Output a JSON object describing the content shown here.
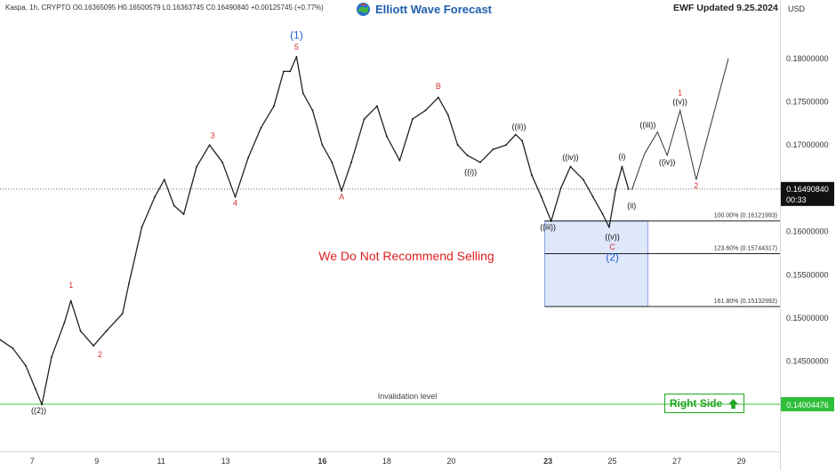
{
  "header": {
    "instrument": "Kaspa, 1h, CRYPTO",
    "ohlc": "O0.16365095 H0.16500579 L0.16363745 C0.16490840 +0.00125745 (+0.77%)",
    "brand": "Elliott Wave Forecast",
    "updated": "EWF Updated 9.25.2024",
    "currency": "USD"
  },
  "colors": {
    "bull_red": "#d32f2f",
    "wave_blue": "#1e5fd6",
    "fib_box": "#dfe7fb",
    "invalidation_green": "#3ec63e",
    "right_side_green": "#22a322"
  },
  "chart_data": {
    "type": "line",
    "subtitle": "We Do Not Recommend Selling",
    "x_axis": {
      "ticks": [
        "7",
        "9",
        "11",
        "13",
        "16",
        "18",
        "20",
        "23",
        "25",
        "27",
        "29"
      ]
    },
    "y_axis": {
      "range": [
        0.1385,
        0.1845
      ],
      "ticks": [
        "0.18000000",
        "0.17500000",
        "0.17000000",
        "0.16000000",
        "0.15500000",
        "0.15000000",
        "0.14500000"
      ],
      "tick_values": [
        0.18,
        0.175,
        0.17,
        0.16,
        0.155,
        0.15,
        0.145
      ]
    },
    "price_series": {
      "name": "Kaspa",
      "points": [
        [
          6.0,
          0.1475
        ],
        [
          6.4,
          0.1465
        ],
        [
          6.8,
          0.1445
        ],
        [
          7.1,
          0.1418
        ],
        [
          7.3,
          0.14
        ],
        [
          7.6,
          0.1455
        ],
        [
          8.0,
          0.1495
        ],
        [
          8.2,
          0.152
        ],
        [
          8.5,
          0.1485
        ],
        [
          8.9,
          0.1468
        ],
        [
          9.3,
          0.1485
        ],
        [
          9.8,
          0.1505
        ],
        [
          10.0,
          0.154
        ],
        [
          10.4,
          0.1605
        ],
        [
          10.8,
          0.164
        ],
        [
          11.1,
          0.166
        ],
        [
          11.4,
          0.163
        ],
        [
          11.7,
          0.162
        ],
        [
          12.1,
          0.1675
        ],
        [
          12.5,
          0.17
        ],
        [
          12.9,
          0.168
        ],
        [
          13.3,
          0.164
        ],
        [
          13.7,
          0.1685
        ],
        [
          14.1,
          0.172
        ],
        [
          14.5,
          0.1745
        ],
        [
          14.8,
          0.1785
        ],
        [
          15.0,
          0.1785
        ],
        [
          15.2,
          0.1802
        ],
        [
          15.4,
          0.176
        ],
        [
          15.7,
          0.174
        ],
        [
          16.0,
          0.17
        ],
        [
          16.3,
          0.168
        ],
        [
          16.6,
          0.1647
        ],
        [
          16.9,
          0.168
        ],
        [
          17.3,
          0.173
        ],
        [
          17.7,
          0.1745
        ],
        [
          18.0,
          0.171
        ],
        [
          18.4,
          0.1682
        ],
        [
          18.8,
          0.173
        ],
        [
          19.2,
          0.174
        ],
        [
          19.6,
          0.1755
        ],
        [
          19.9,
          0.1735
        ],
        [
          20.2,
          0.17
        ],
        [
          20.5,
          0.1688
        ],
        [
          20.9,
          0.168
        ],
        [
          21.3,
          0.1695
        ],
        [
          21.7,
          0.17
        ],
        [
          22.0,
          0.1712
        ],
        [
          22.2,
          0.1705
        ],
        [
          22.5,
          0.1665
        ],
        [
          22.8,
          0.164
        ],
        [
          23.1,
          0.1612
        ],
        [
          23.4,
          0.165
        ],
        [
          23.7,
          0.1675
        ],
        [
          24.1,
          0.166
        ],
        [
          24.4,
          0.164
        ],
        [
          24.7,
          0.162
        ],
        [
          24.9,
          0.1605
        ],
        [
          25.1,
          0.1648
        ],
        [
          25.3,
          0.1675
        ],
        [
          25.5,
          0.1649
        ]
      ]
    },
    "projection_path": {
      "name": "projection",
      "points": [
        [
          25.6,
          0.1648
        ],
        [
          26.0,
          0.169
        ],
        [
          26.4,
          0.1715
        ],
        [
          26.7,
          0.1688
        ],
        [
          27.1,
          0.174
        ],
        [
          27.6,
          0.166
        ],
        [
          28.6,
          0.18
        ]
      ]
    },
    "wave_labels": [
      {
        "text": "((2))",
        "x": 7.2,
        "y": 0.139,
        "color": "#111111"
      },
      {
        "text": "1",
        "x": 8.2,
        "y": 0.1535,
        "color": "#d32f2f"
      },
      {
        "text": "2",
        "x": 9.1,
        "y": 0.1455,
        "color": "#d32f2f"
      },
      {
        "text": "3",
        "x": 12.6,
        "y": 0.1708,
        "color": "#d32f2f"
      },
      {
        "text": "4",
        "x": 13.3,
        "y": 0.163,
        "color": "#d32f2f"
      },
      {
        "text": "5",
        "x": 15.2,
        "y": 0.181,
        "color": "#d32f2f"
      },
      {
        "text": "(1)",
        "x": 15.2,
        "y": 0.1823,
        "color": "#1e5fd6"
      },
      {
        "text": "A",
        "x": 16.6,
        "y": 0.1637,
        "color": "#d32f2f"
      },
      {
        "text": "B",
        "x": 19.6,
        "y": 0.1765,
        "color": "#d32f2f"
      },
      {
        "text": "((i))",
        "x": 20.6,
        "y": 0.1666,
        "color": "#111111"
      },
      {
        "text": "((ii))",
        "x": 22.1,
        "y": 0.1718,
        "color": "#111111"
      },
      {
        "text": "((iii))",
        "x": 23.0,
        "y": 0.1602,
        "color": "#111111"
      },
      {
        "text": "((iv))",
        "x": 23.7,
        "y": 0.1683,
        "color": "#111111"
      },
      {
        "text": "((v))",
        "x": 25.0,
        "y": 0.1591,
        "color": "#111111"
      },
      {
        "text": "C",
        "x": 25.0,
        "y": 0.1579,
        "color": "#d32f2f"
      },
      {
        "text": "(2)",
        "x": 25.0,
        "y": 0.1566,
        "color": "#1e5fd6"
      },
      {
        "text": "(i)",
        "x": 25.3,
        "y": 0.1684,
        "color": "#111111"
      },
      {
        "text": "(ii)",
        "x": 25.6,
        "y": 0.1627,
        "color": "#111111"
      },
      {
        "text": "((iii))",
        "x": 26.1,
        "y": 0.172,
        "color": "#111111"
      },
      {
        "text": "((iv))",
        "x": 26.7,
        "y": 0.1677,
        "color": "#111111"
      },
      {
        "text": "((v))",
        "x": 27.1,
        "y": 0.1747,
        "color": "#111111"
      },
      {
        "text": "1",
        "x": 27.1,
        "y": 0.1757,
        "color": "#d32f2f"
      },
      {
        "text": "2",
        "x": 27.6,
        "y": 0.165,
        "color": "#d32f2f"
      }
    ],
    "fib_levels": [
      {
        "label": "100.00% (0.16121993)",
        "value": 0.16121993
      },
      {
        "label": "123.60% (0.15744317)",
        "value": 0.15744317
      },
      {
        "label": "161.80% (0.15132992)",
        "value": 0.15132992
      }
    ],
    "fib_zone": {
      "x_start": 22.9,
      "x_end": 26.1,
      "y_top": 0.16121993,
      "y_bottom": 0.15132992
    },
    "invalidation": {
      "label": "Invalidation level",
      "value": 0.14004476,
      "value_label": "0.14004476"
    },
    "last_price": {
      "value": 0.1649084,
      "label": "0.16490840",
      "countdown": "00:33"
    },
    "right_side": "Right Side"
  }
}
